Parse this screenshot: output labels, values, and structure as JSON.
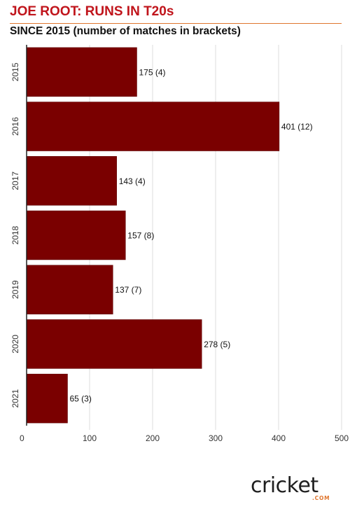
{
  "header": {
    "title": "JOE ROOT: RUNS IN T20s",
    "subtitle": "SINCE 2015 (number of matches in brackets)"
  },
  "colors": {
    "bar": "#7a0000",
    "title": "#c0141b",
    "accent": "#e0762e",
    "grid": "#dddddd"
  },
  "logo": {
    "word": "cricket",
    "sub": ".COM"
  },
  "chart_data": {
    "type": "bar",
    "orientation": "horizontal",
    "categories": [
      "2015",
      "2016",
      "2017",
      "2018",
      "2019",
      "2020",
      "2021"
    ],
    "values": [
      175,
      401,
      143,
      157,
      137,
      278,
      65
    ],
    "data_labels": [
      "175 (4)",
      "401 (12)",
      "143 (4)",
      "157 (8)",
      "137 (7)",
      "278 (5)",
      "65 (3)"
    ],
    "matches": [
      4,
      12,
      4,
      8,
      7,
      5,
      3
    ],
    "title": "JOE ROOT: RUNS IN T20s",
    "subtitle": "SINCE 2015 (number of matches in brackets)",
    "xlabel": "",
    "ylabel": "",
    "xlim": [
      0,
      500
    ],
    "xticks": [
      0,
      100,
      200,
      300,
      400,
      500
    ],
    "grid": true,
    "legend": "none"
  }
}
